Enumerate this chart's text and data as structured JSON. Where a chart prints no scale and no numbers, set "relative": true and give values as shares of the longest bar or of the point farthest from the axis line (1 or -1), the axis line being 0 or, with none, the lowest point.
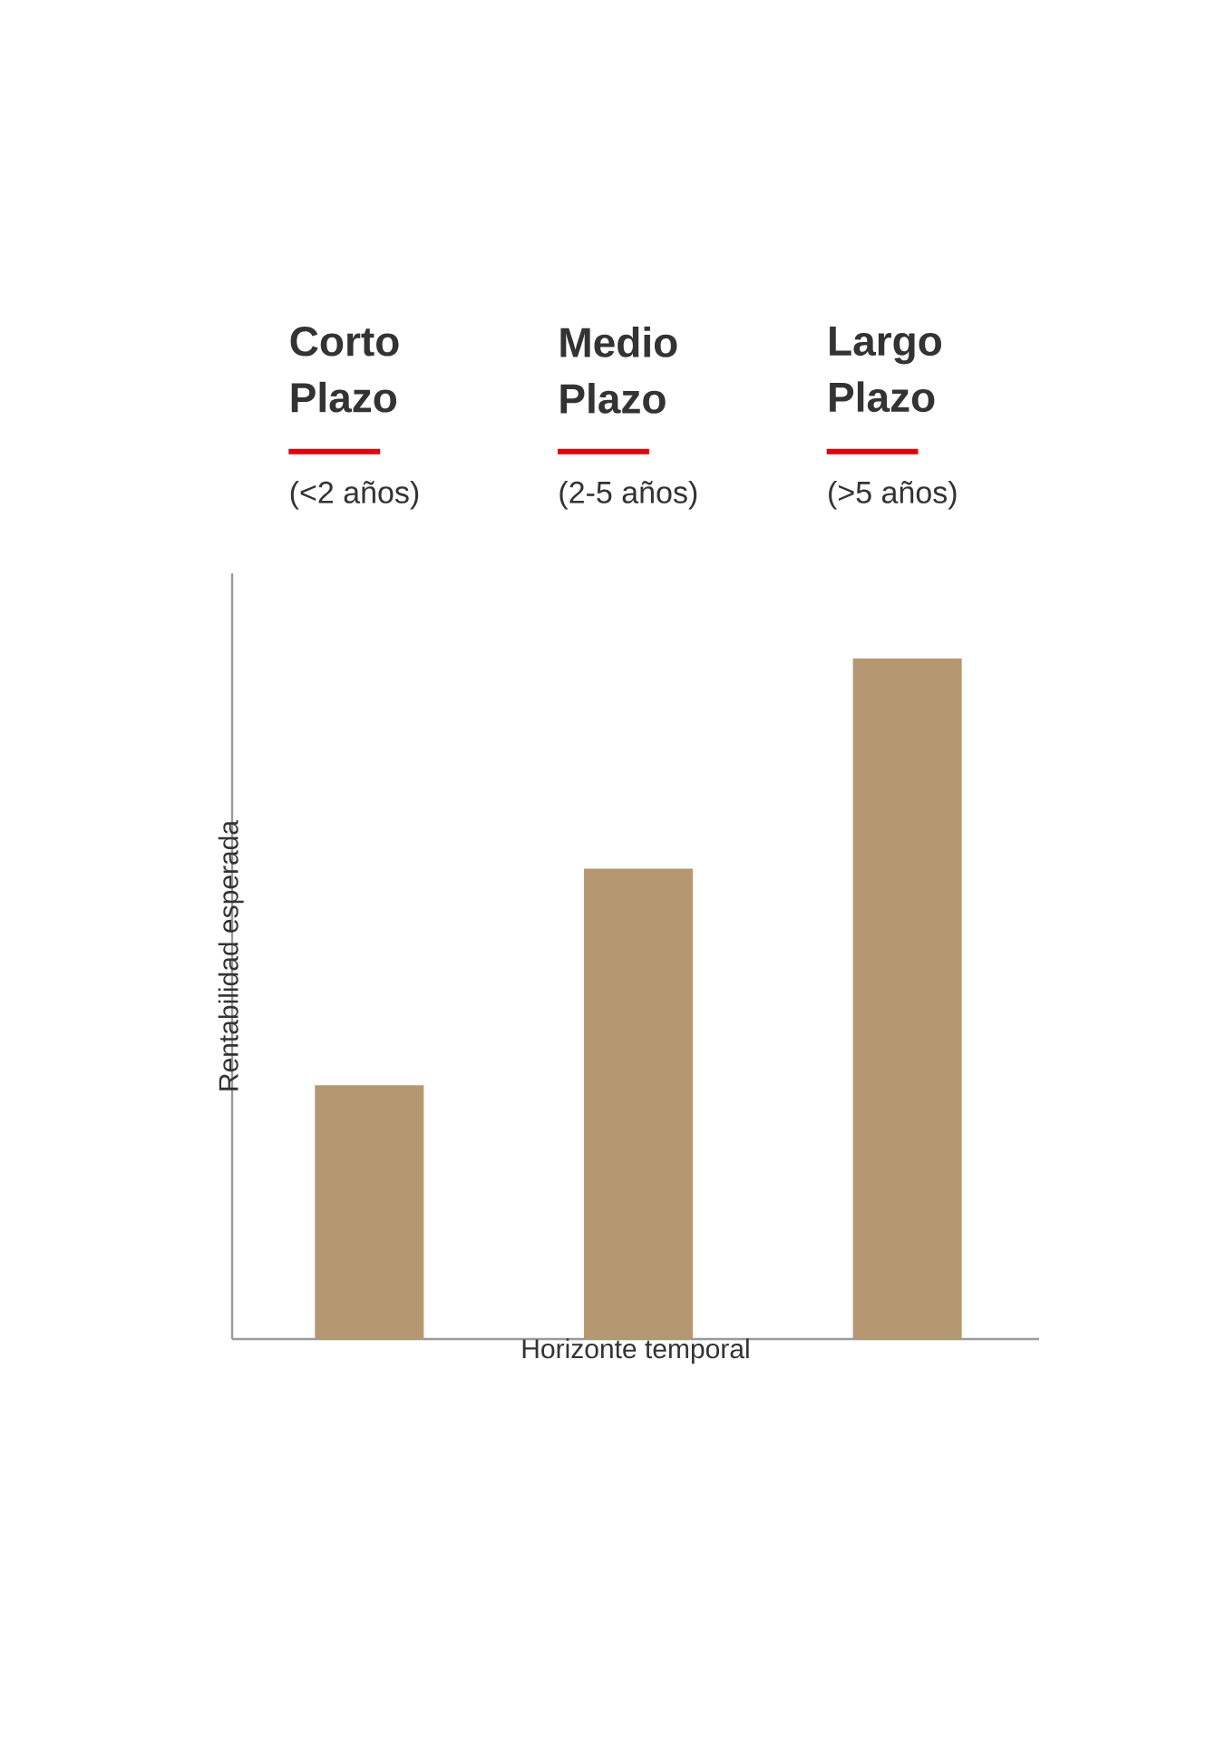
{
  "chart_data": {
    "type": "bar",
    "relative": true,
    "categories": [
      "Corto Plazo",
      "Medio Plazo",
      "Largo Plazo"
    ],
    "values": [
      0.373,
      0.691,
      1
    ],
    "color": "#b59872",
    "xlabel": "Horizonte temporal",
    "ylabel": "Rentabilidad esperada",
    "annotations": [
      "(<2 años)",
      "(2-5 años)",
      "(>5 años)"
    ]
  }
}
